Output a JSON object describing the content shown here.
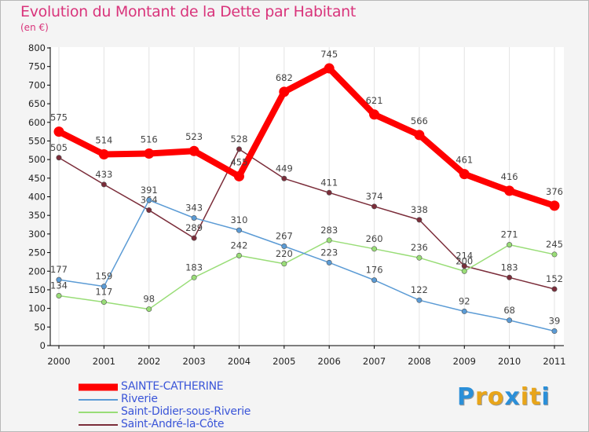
{
  "header": {
    "title": "Evolution du Montant de la Dette par Habitant",
    "subtitle": "(en €)"
  },
  "logo": {
    "text": "Proxiti",
    "letters": [
      "P",
      "r",
      "o",
      "x",
      "i",
      "t",
      "i"
    ],
    "colors": [
      "#2b8fd8",
      "#e8a51a",
      "#e8a51a",
      "#2b8fd8",
      "#e8a51a",
      "#e8a51a",
      "#2b8fd8"
    ]
  },
  "chart_data": {
    "type": "line",
    "title": "Evolution du Montant de la Dette par Habitant",
    "xlabel": "",
    "ylabel": "",
    "x": [
      "2000",
      "2001",
      "2002",
      "2003",
      "2004",
      "2005",
      "2006",
      "2007",
      "2008",
      "2009",
      "2010",
      "2011"
    ],
    "ylim": [
      0,
      800
    ],
    "yticks": [
      0,
      50,
      100,
      150,
      200,
      250,
      300,
      350,
      400,
      450,
      500,
      550,
      600,
      650,
      700,
      750,
      800
    ],
    "grid": "vertical",
    "legend": "bottom-left",
    "series": [
      {
        "name": "SAINTE-CATHERINE",
        "color": "#ff0000",
        "values": [
          575,
          514,
          516,
          523,
          455,
          682,
          745,
          621,
          566,
          461,
          416,
          376
        ]
      },
      {
        "name": "Riverie",
        "color": "#5b9bd5",
        "values": [
          177,
          159,
          391,
          343,
          310,
          267,
          223,
          176,
          122,
          92,
          68,
          39
        ]
      },
      {
        "name": "Saint-Didier-sous-Riverie",
        "color": "#99dd77",
        "values": [
          134,
          117,
          98,
          183,
          242,
          220,
          283,
          260,
          236,
          200,
          271,
          245
        ]
      },
      {
        "name": "Saint-André-la-Côte",
        "color": "#7b2d3a",
        "values": [
          505,
          433,
          364,
          289,
          528,
          449,
          411,
          374,
          338,
          214,
          183,
          152
        ]
      }
    ]
  }
}
